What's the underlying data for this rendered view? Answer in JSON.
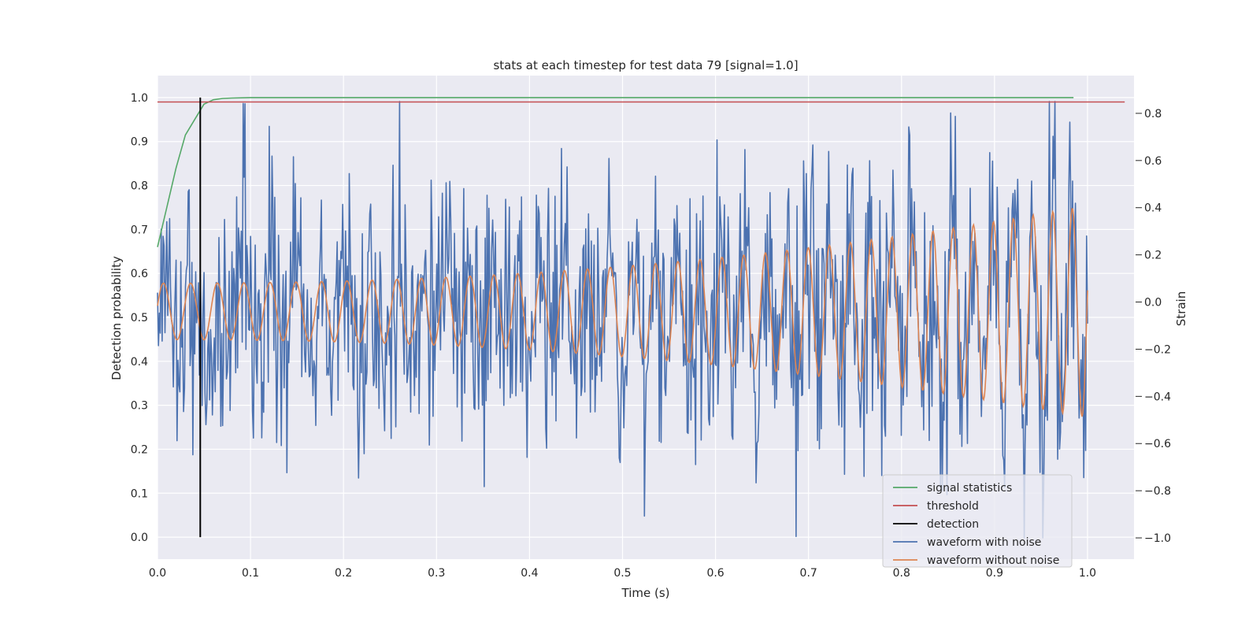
{
  "chart_data": {
    "type": "line",
    "title": "stats at each timestep for test data 79 [signal=1.0]",
    "xlabel": "Time (s)",
    "ylabel_left": "Detection probability",
    "ylabel_right": "Strain",
    "xlim": [
      0.0,
      1.05
    ],
    "ylim_left": [
      -0.05,
      1.05
    ],
    "ylim_right": [
      -1.09,
      0.96
    ],
    "x_ticks": [
      "0.0",
      "0.1",
      "0.2",
      "0.3",
      "0.4",
      "0.5",
      "0.6",
      "0.7",
      "0.8",
      "0.9",
      "1.0"
    ],
    "y_ticks_left": [
      "0.0",
      "0.1",
      "0.2",
      "0.3",
      "0.4",
      "0.5",
      "0.6",
      "0.7",
      "0.8",
      "0.9",
      "1.0"
    ],
    "y_ticks_right": [
      "−1.0",
      "−0.8",
      "−0.6",
      "−0.4",
      "−0.2",
      "0.0",
      "0.2",
      "0.4",
      "0.6",
      "0.8"
    ],
    "grid": true,
    "legend_position": "lower-right",
    "series": [
      {
        "name": "signal statistics",
        "axis": "left",
        "color": "#55a868",
        "x": [
          0.0,
          0.01,
          0.02,
          0.03,
          0.04,
          0.05,
          0.06,
          0.07,
          0.08,
          0.1,
          0.2,
          0.5,
          0.8,
          0.985
        ],
        "y": [
          0.66,
          0.75,
          0.84,
          0.915,
          0.95,
          0.985,
          0.995,
          0.998,
          0.999,
          1.0,
          1.0,
          1.0,
          1.0,
          1.0
        ]
      },
      {
        "name": "threshold",
        "axis": "left",
        "color": "#c44e52",
        "x": [
          0.0,
          1.04
        ],
        "y": [
          0.99,
          0.99
        ]
      },
      {
        "name": "detection",
        "axis": "left",
        "color": "#000000",
        "x": [
          0.046,
          0.046
        ],
        "y": [
          0.0,
          1.0
        ]
      },
      {
        "name": "waveform with noise",
        "axis": "right",
        "color": "#4c72b0",
        "points": 1000,
        "x_range": [
          0.0,
          1.0
        ],
        "noise_std": 0.28,
        "clip_range": [
          -1.0,
          0.85
        ]
      },
      {
        "name": "waveform without noise",
        "axis": "right",
        "color": "#dd8452",
        "x_range": [
          0.0,
          1.0
        ],
        "amplitude_start": 0.12,
        "amplitude_end": 0.45,
        "frequency_start_hz": 34,
        "frequency_end_hz": 48
      }
    ],
    "legend": [
      {
        "label": "signal statistics",
        "color": "#55a868"
      },
      {
        "label": "threshold",
        "color": "#c44e52"
      },
      {
        "label": "detection",
        "color": "#000000"
      },
      {
        "label": "waveform with noise",
        "color": "#4c72b0"
      },
      {
        "label": "waveform without noise",
        "color": "#dd8452"
      }
    ]
  }
}
